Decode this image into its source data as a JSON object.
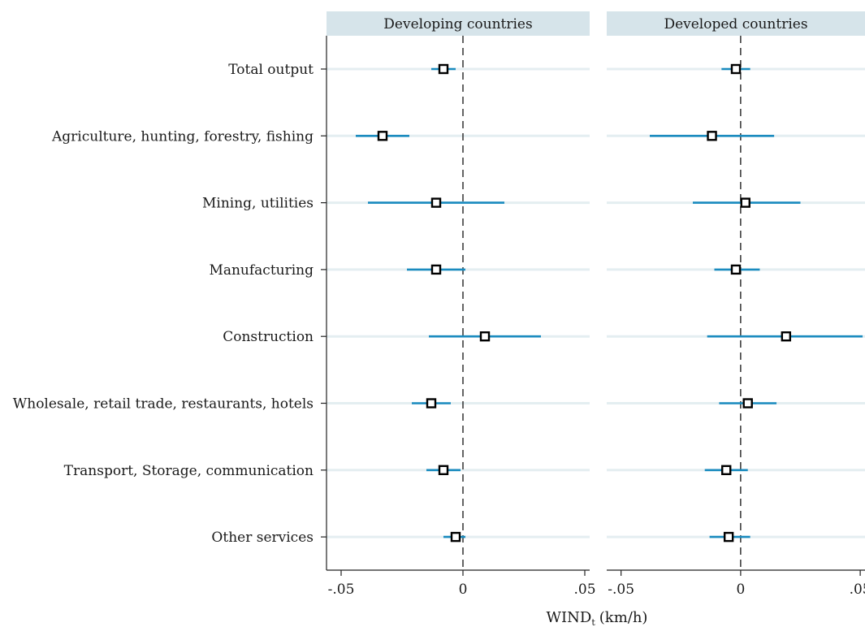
{
  "chart_data": {
    "type": "coefficient-plot",
    "xlabel": "WIND",
    "xlabel_subscript": "t",
    "xlabel_unit": "(km/h)",
    "categories": [
      "Total output",
      "Agriculture, hunting, forestry, fishing",
      "Mining, utilities",
      "Manufacturing",
      "Construction",
      "Wholesale, retail trade, restaurants, hotels",
      "Transport, Storage, communication",
      "Other services"
    ],
    "xlim": [
      -0.056,
      0.052
    ],
    "xticks": [
      -0.05,
      0,
      0.05
    ],
    "xtick_labels": [
      "-.05",
      "0",
      ".05"
    ],
    "reference_line": 0,
    "colors": {
      "ci": "#1a8bbf",
      "point": "#000000",
      "strip": "#d6e4ea",
      "row_line": "#e4eef1"
    },
    "panels": [
      {
        "title": "Developing countries",
        "series": [
          {
            "category": "Total output",
            "estimate": -0.008,
            "ci_low": -0.013,
            "ci_high": -0.003
          },
          {
            "category": "Agriculture, hunting, forestry, fishing",
            "estimate": -0.033,
            "ci_low": -0.044,
            "ci_high": -0.022
          },
          {
            "category": "Mining, utilities",
            "estimate": -0.011,
            "ci_low": -0.039,
            "ci_high": 0.017
          },
          {
            "category": "Manufacturing",
            "estimate": -0.011,
            "ci_low": -0.023,
            "ci_high": 0.001
          },
          {
            "category": "Construction",
            "estimate": 0.009,
            "ci_low": -0.014,
            "ci_high": 0.032
          },
          {
            "category": "Wholesale, retail trade, restaurants, hotels",
            "estimate": -0.013,
            "ci_low": -0.021,
            "ci_high": -0.005
          },
          {
            "category": "Transport, Storage, communication",
            "estimate": -0.008,
            "ci_low": -0.015,
            "ci_high": -0.001
          },
          {
            "category": "Other services",
            "estimate": -0.003,
            "ci_low": -0.008,
            "ci_high": 0.001
          }
        ]
      },
      {
        "title": "Developed countries",
        "series": [
          {
            "category": "Total output",
            "estimate": -0.002,
            "ci_low": -0.008,
            "ci_high": 0.004
          },
          {
            "category": "Agriculture, hunting, forestry, fishing",
            "estimate": -0.012,
            "ci_low": -0.038,
            "ci_high": 0.014
          },
          {
            "category": "Mining, utilities",
            "estimate": 0.002,
            "ci_low": -0.02,
            "ci_high": 0.025
          },
          {
            "category": "Manufacturing",
            "estimate": -0.002,
            "ci_low": -0.011,
            "ci_high": 0.008
          },
          {
            "category": "Construction",
            "estimate": 0.019,
            "ci_low": -0.014,
            "ci_high": 0.051
          },
          {
            "category": "Wholesale, retail trade, restaurants, hotels",
            "estimate": 0.003,
            "ci_low": -0.009,
            "ci_high": 0.015
          },
          {
            "category": "Transport, Storage, communication",
            "estimate": -0.006,
            "ci_low": -0.015,
            "ci_high": 0.003
          },
          {
            "category": "Other services",
            "estimate": -0.005,
            "ci_low": -0.013,
            "ci_high": 0.004
          }
        ]
      }
    ]
  }
}
